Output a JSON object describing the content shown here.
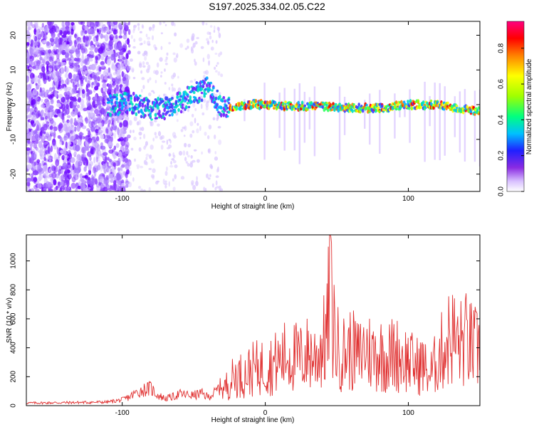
{
  "title": "S197.2025.334.02.05.C22",
  "chart_data": [
    {
      "type": "heatmap",
      "name": "spectrogram",
      "xlabel": "Height of straight line (km)",
      "ylabel": "Frequency (Hz)",
      "xlim": [
        -167,
        150
      ],
      "ylim": [
        -25,
        24
      ],
      "xticks": [
        -100,
        0,
        100
      ],
      "xtick_labels": [
        "-100",
        "0",
        "100"
      ],
      "yticks": [
        -20,
        -10,
        0,
        10,
        20
      ],
      "ytick_labels": [
        "-20",
        "-10",
        "0",
        "10",
        "20"
      ],
      "colorbar": {
        "label": "Normalized spectral amplitude",
        "range": [
          0.0,
          0.95
        ],
        "ticks": [
          0.0,
          0.2,
          0.4,
          0.6,
          0.8
        ],
        "tick_labels": [
          "0.0",
          "0.2",
          "0.4",
          "0.6",
          "0.8"
        ]
      },
      "ridge": {
        "x": [
          -100,
          -90,
          -80,
          -70,
          -60,
          -50,
          -40,
          -35,
          -30,
          -20,
          -10,
          0,
          20,
          40,
          60,
          80,
          100,
          120,
          140,
          150
        ],
        "y": [
          1,
          0,
          -1.5,
          -1,
          0.5,
          3,
          5,
          2,
          -1,
          -0.5,
          0,
          0,
          -0.5,
          -0.5,
          -1,
          -1,
          0,
          0,
          -1.5,
          -2
        ]
      }
    },
    {
      "type": "line",
      "name": "snr",
      "xlabel": "Height of straight line (km)",
      "ylabel": "SNR (10 * v/v)",
      "xlim": [
        -167,
        150
      ],
      "ylim": [
        0,
        1180
      ],
      "xticks": [
        -100,
        0,
        100
      ],
      "xtick_labels": [
        "-100",
        "0",
        "100"
      ],
      "yticks": [
        0,
        200,
        400,
        600,
        800,
        1000
      ],
      "ytick_labels": [
        "0",
        "200",
        "400",
        "600",
        "800",
        "1000"
      ],
      "series": [
        {
          "name": "SNR",
          "color": "#e03030",
          "x": [
            -167,
            -150,
            -130,
            -110,
            -100,
            -95,
            -90,
            -85,
            -80,
            -75,
            -70,
            -65,
            -60,
            -55,
            -50,
            -45,
            -40,
            -35,
            -30,
            -25,
            -20,
            -15,
            -10,
            -5,
            0,
            5,
            10,
            15,
            20,
            25,
            30,
            35,
            40,
            43,
            45,
            50,
            55,
            60,
            65,
            70,
            75,
            80,
            85,
            90,
            95,
            100,
            105,
            110,
            115,
            120,
            125,
            130,
            135,
            140,
            145,
            150
          ],
          "y": [
            18,
            20,
            22,
            25,
            40,
            60,
            90,
            110,
            120,
            70,
            50,
            60,
            80,
            75,
            70,
            85,
            60,
            90,
            150,
            260,
            330,
            320,
            380,
            400,
            420,
            440,
            470,
            540,
            520,
            500,
            560,
            520,
            640,
            750,
            1180,
            620,
            560,
            600,
            520,
            620,
            540,
            560,
            500,
            560,
            520,
            480,
            420,
            440,
            320,
            480,
            620,
            760,
            640,
            700,
            620,
            580
          ]
        }
      ]
    }
  ]
}
